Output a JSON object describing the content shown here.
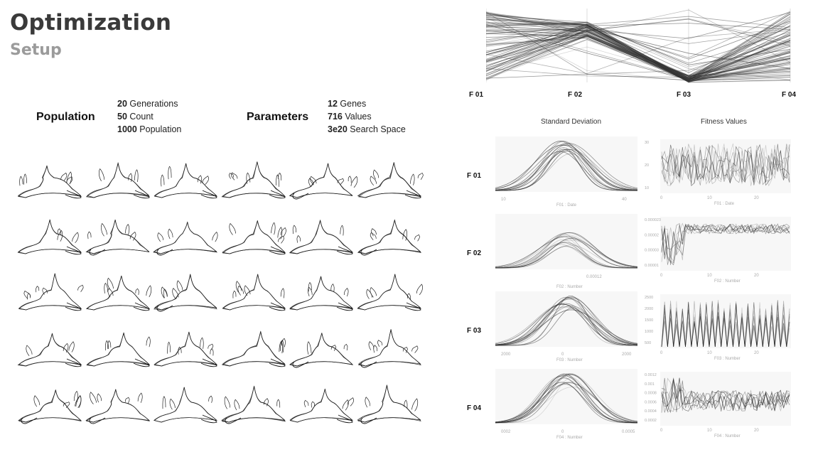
{
  "header": {
    "title": "Optimization",
    "subtitle": "Setup"
  },
  "population": {
    "label": "Population",
    "stats": [
      {
        "value": "20",
        "text": "Generations"
      },
      {
        "value": "50",
        "text": "Count"
      },
      {
        "value": "1000",
        "text": "Population"
      }
    ]
  },
  "parameters": {
    "label": "Parameters",
    "stats": [
      {
        "value": "12",
        "text": "Genes"
      },
      {
        "value": "716",
        "text": "Values"
      },
      {
        "value": "3e20",
        "text": "Search Space"
      }
    ]
  },
  "chart_data": [
    {
      "type": "line",
      "kind": "parallel-coordinates",
      "axes": [
        "F 01",
        "F 02",
        "F 03",
        "F 04"
      ],
      "colors": {
        "line": "#333333"
      }
    },
    {
      "type": "line",
      "kind": "small-multiples",
      "column_titles": [
        "Standard Deviation",
        "Fitness Values"
      ],
      "rows": [
        {
          "label": "F 01",
          "sd_xlabel": "F01 : Date",
          "sd_ticks": [
            "10",
            "40"
          ],
          "fit_xlabel": "F01 : Date",
          "fit_yticks": [
            "30",
            "20",
            "10"
          ],
          "fit_xticks": [
            "0",
            "10",
            "20"
          ]
        },
        {
          "label": "F 02",
          "sd_xlabel": "F02 : Number",
          "sd_ticks": [
            "0.00012"
          ],
          "fit_xlabel": "F02 : Number",
          "fit_yticks": [
            "0.000023",
            "0.00002",
            "0.00003",
            "0.00001"
          ],
          "fit_xticks": [
            "0",
            "10",
            "20"
          ]
        },
        {
          "label": "F 03",
          "sd_xlabel": "F03 : Number",
          "sd_ticks": [
            "2000",
            "0",
            "2000"
          ],
          "fit_xlabel": "F03 : Number",
          "fit_yticks": [
            "2500",
            "2000",
            "1500",
            "1000",
            "500"
          ],
          "fit_xticks": [
            "0",
            "10",
            "20"
          ]
        },
        {
          "label": "F 04",
          "sd_xlabel": "F04 : Number",
          "sd_ticks": [
            "0002",
            "0",
            "0.0005"
          ],
          "fit_xlabel": "F04 : Number",
          "fit_yticks": [
            "0.0012",
            "0.001",
            "0.0008",
            "0.0006",
            "0.0004",
            "0.0002"
          ],
          "fit_xticks": [
            "0",
            "10",
            "20"
          ]
        }
      ]
    }
  ]
}
